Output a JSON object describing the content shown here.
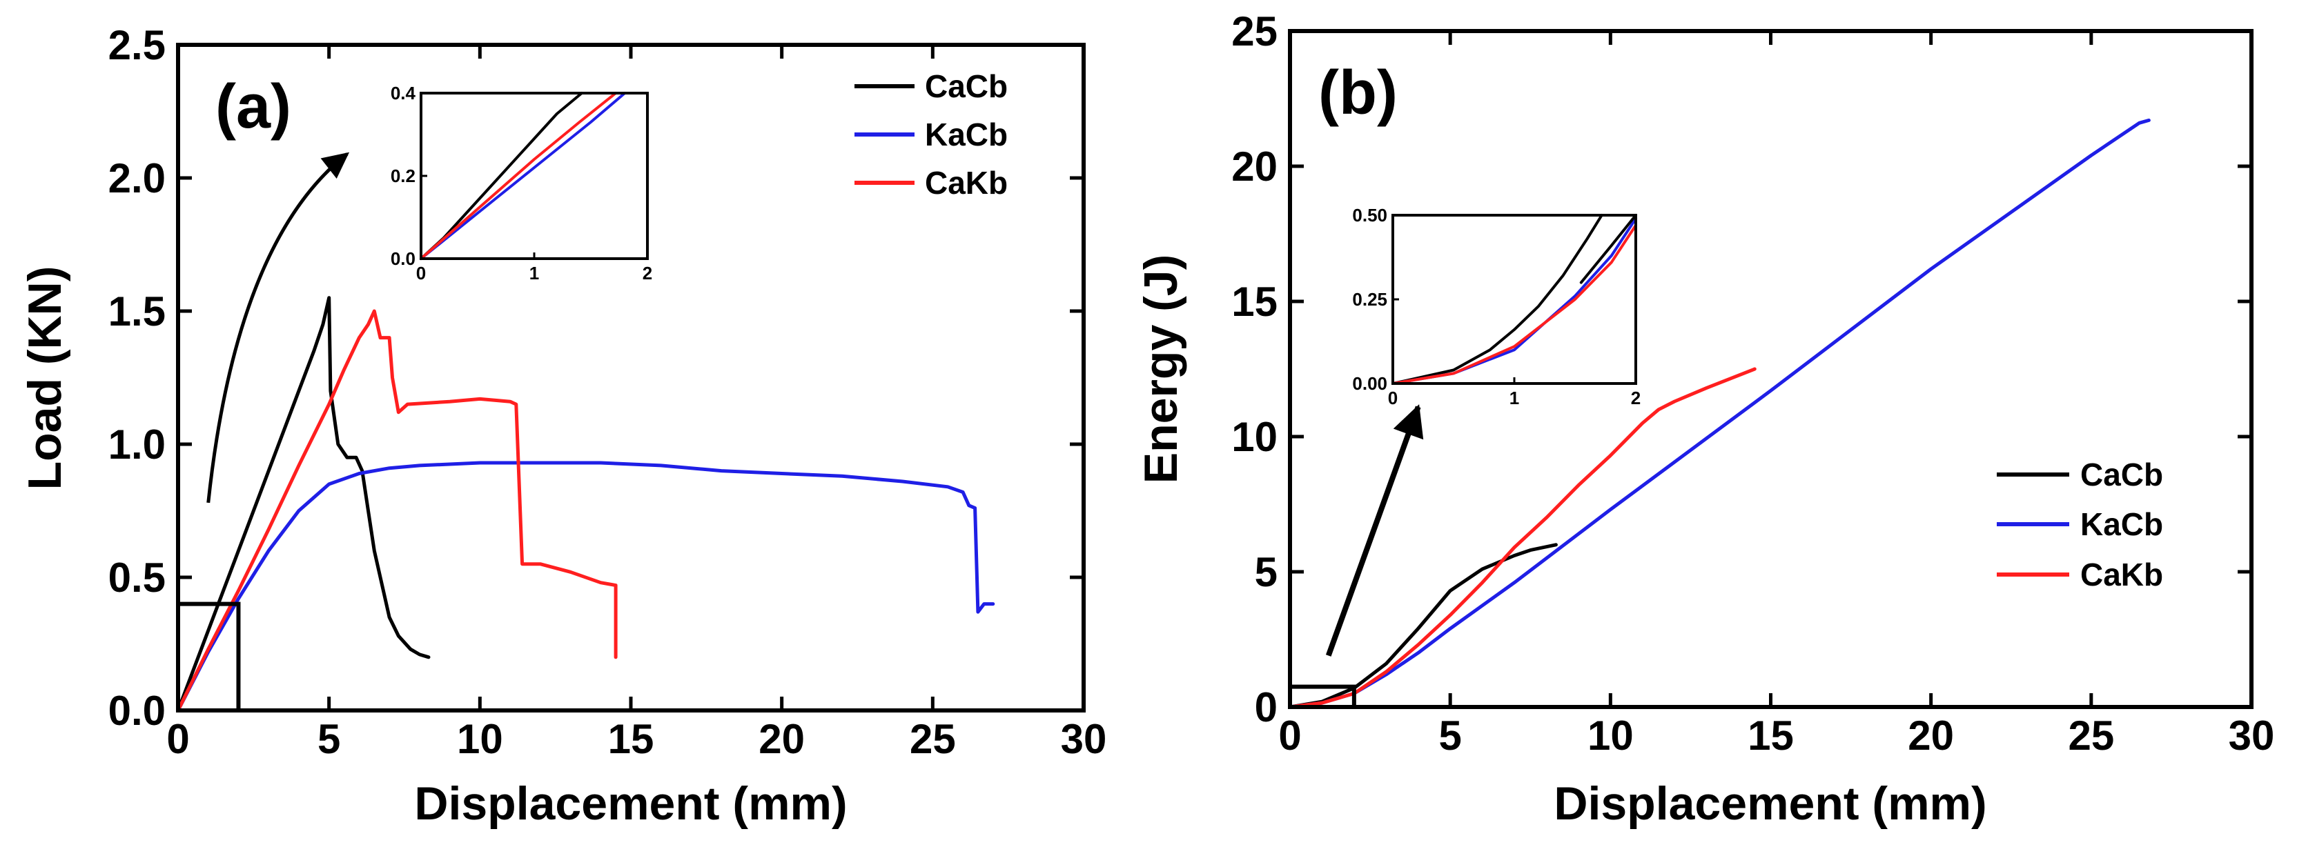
{
  "chart_data": [
    {
      "type": "line",
      "panel_label": "(a)",
      "xlabel": "Displacement (mm)",
      "ylabel": "Load (KN)",
      "xlim": [
        0,
        30
      ],
      "ylim": [
        0,
        2.5
      ],
      "xticks": [
        0,
        5,
        10,
        15,
        20,
        25,
        30
      ],
      "yticks": [
        0.0,
        0.5,
        1.0,
        1.5,
        2.0,
        2.5
      ],
      "xtick_labels": [
        "0",
        "5",
        "10",
        "15",
        "20",
        "25",
        "30"
      ],
      "ytick_labels": [
        "0.0",
        "0.5",
        "1.0",
        "1.5",
        "2.0",
        "2.5"
      ],
      "legend": [
        "CaCb",
        "KaCb",
        "CaKb"
      ],
      "legend_position": "top-right",
      "series": [
        {
          "name": "CaCb",
          "color": "#000000",
          "points": [
            [
              0,
              0
            ],
            [
              1,
              0.3
            ],
            [
              2,
              0.6
            ],
            [
              3,
              0.9
            ],
            [
              4,
              1.2
            ],
            [
              4.5,
              1.35
            ],
            [
              4.8,
              1.45
            ],
            [
              5.0,
              1.55
            ],
            [
              5.05,
              1.2
            ],
            [
              5.3,
              1.0
            ],
            [
              5.6,
              0.95
            ],
            [
              5.9,
              0.95
            ],
            [
              6.1,
              0.9
            ],
            [
              6.3,
              0.75
            ],
            [
              6.5,
              0.6
            ],
            [
              6.8,
              0.45
            ],
            [
              7.0,
              0.35
            ],
            [
              7.3,
              0.28
            ],
            [
              7.7,
              0.23
            ],
            [
              8.0,
              0.21
            ],
            [
              8.3,
              0.2
            ]
          ]
        },
        {
          "name": "KaCb",
          "color": "#1f1fe6",
          "points": [
            [
              0,
              0
            ],
            [
              1,
              0.22
            ],
            [
              2,
              0.42
            ],
            [
              3,
              0.6
            ],
            [
              4,
              0.75
            ],
            [
              5,
              0.85
            ],
            [
              6,
              0.89
            ],
            [
              7,
              0.91
            ],
            [
              8,
              0.92
            ],
            [
              10,
              0.93
            ],
            [
              12,
              0.93
            ],
            [
              14,
              0.93
            ],
            [
              16,
              0.92
            ],
            [
              18,
              0.9
            ],
            [
              20,
              0.89
            ],
            [
              22,
              0.88
            ],
            [
              24,
              0.86
            ],
            [
              25.5,
              0.84
            ],
            [
              26.0,
              0.82
            ],
            [
              26.2,
              0.77
            ],
            [
              26.4,
              0.76
            ],
            [
              26.5,
              0.37
            ],
            [
              26.7,
              0.4
            ],
            [
              27.0,
              0.4
            ]
          ]
        },
        {
          "name": "CaKb",
          "color": "#ff1f1f",
          "points": [
            [
              0,
              0
            ],
            [
              1,
              0.23
            ],
            [
              2,
              0.45
            ],
            [
              3,
              0.68
            ],
            [
              4,
              0.92
            ],
            [
              5,
              1.15
            ],
            [
              5.5,
              1.28
            ],
            [
              6.0,
              1.4
            ],
            [
              6.3,
              1.45
            ],
            [
              6.5,
              1.5
            ],
            [
              6.7,
              1.4
            ],
            [
              7.0,
              1.4
            ],
            [
              7.1,
              1.25
            ],
            [
              7.3,
              1.12
            ],
            [
              7.6,
              1.15
            ],
            [
              9,
              1.16
            ],
            [
              10,
              1.17
            ],
            [
              11,
              1.16
            ],
            [
              11.2,
              1.15
            ],
            [
              11.4,
              0.55
            ],
            [
              12,
              0.55
            ],
            [
              13,
              0.52
            ],
            [
              14,
              0.48
            ],
            [
              14.5,
              0.47
            ],
            [
              14.5,
              0.2
            ]
          ]
        }
      ],
      "annotations": [
        {
          "type": "zoom-box",
          "x": [
            0,
            2
          ],
          "y": [
            0,
            0.4
          ]
        },
        {
          "type": "arrow",
          "from": [
            1.0,
            0.78
          ],
          "to": [
            5.6,
            2.09
          ]
        }
      ],
      "inset": {
        "xlim": [
          0,
          2
        ],
        "ylim": [
          0,
          0.4
        ],
        "xticks": [
          0,
          1,
          2
        ],
        "yticks": [
          0.0,
          0.2,
          0.4
        ],
        "xtick_labels": [
          "0",
          "1",
          "2"
        ],
        "ytick_labels": [
          "0.0",
          "0.2",
          "0.4"
        ],
        "series": [
          {
            "name": "CaCb",
            "color": "#000000",
            "points": [
              [
                0,
                0
              ],
              [
                0.2,
                0.05
              ],
              [
                0.6,
                0.17
              ],
              [
                1.0,
                0.29
              ],
              [
                1.2,
                0.35
              ],
              [
                1.42,
                0.4
              ]
            ]
          },
          {
            "name": "KaCb",
            "color": "#1f1fe6",
            "points": [
              [
                0,
                0
              ],
              [
                0.5,
                0.11
              ],
              [
                1.0,
                0.22
              ],
              [
                1.5,
                0.33
              ],
              [
                1.8,
                0.4
              ]
            ]
          },
          {
            "name": "CaKb",
            "color": "#ff1f1f",
            "points": [
              [
                0,
                0
              ],
              [
                0.5,
                0.12
              ],
              [
                1.0,
                0.24
              ],
              [
                1.4,
                0.33
              ],
              [
                1.72,
                0.4
              ]
            ]
          }
        ]
      }
    },
    {
      "type": "line",
      "panel_label": "(b)",
      "xlabel": "Displacement (mm)",
      "ylabel": "Energy (J)",
      "xlim": [
        0,
        30
      ],
      "ylim": [
        0,
        25
      ],
      "xticks": [
        0,
        5,
        10,
        15,
        20,
        25,
        30
      ],
      "yticks": [
        0,
        5,
        10,
        15,
        20,
        25
      ],
      "xtick_labels": [
        "0",
        "5",
        "10",
        "15",
        "20",
        "25",
        "30"
      ],
      "ytick_labels": [
        "0",
        "5",
        "10",
        "15",
        "20",
        "25"
      ],
      "legend": [
        "CaCb",
        "KaCb",
        "CaKb"
      ],
      "legend_position": "center-right",
      "series": [
        {
          "name": "CaCb",
          "color": "#000000",
          "points": [
            [
              0,
              0
            ],
            [
              1,
              0.2
            ],
            [
              2,
              0.7
            ],
            [
              3,
              1.6
            ],
            [
              4,
              2.9
            ],
            [
              5,
              4.3
            ],
            [
              6,
              5.1
            ],
            [
              7,
              5.6
            ],
            [
              7.5,
              5.8
            ],
            [
              8.3,
              6.0
            ]
          ]
        },
        {
          "name": "KaCb",
          "color": "#1f1fe6",
          "points": [
            [
              0,
              0
            ],
            [
              1,
              0.15
            ],
            [
              2,
              0.5
            ],
            [
              3,
              1.2
            ],
            [
              4,
              2.0
            ],
            [
              5,
              2.9
            ],
            [
              7,
              4.6
            ],
            [
              10,
              7.3
            ],
            [
              15,
              11.7
            ],
            [
              20,
              16.2
            ],
            [
              25,
              20.4
            ],
            [
              26.5,
              21.6
            ],
            [
              26.8,
              21.7
            ]
          ]
        },
        {
          "name": "CaKb",
          "color": "#ff1f1f",
          "points": [
            [
              0,
              0
            ],
            [
              1,
              0.15
            ],
            [
              2,
              0.5
            ],
            [
              3,
              1.3
            ],
            [
              4,
              2.3
            ],
            [
              5,
              3.4
            ],
            [
              6,
              4.6
            ],
            [
              7,
              5.9
            ],
            [
              8,
              7.0
            ],
            [
              9,
              8.2
            ],
            [
              10,
              9.3
            ],
            [
              11,
              10.5
            ],
            [
              11.5,
              11.0
            ],
            [
              12,
              11.3
            ],
            [
              13,
              11.8
            ],
            [
              14.5,
              12.5
            ]
          ]
        }
      ],
      "annotations": [
        {
          "type": "zoom-box",
          "x": [
            0,
            2
          ],
          "y": [
            0,
            0.75
          ]
        },
        {
          "type": "arrow",
          "from": [
            1.2,
            1.9
          ],
          "to": [
            4.0,
            11.1
          ]
        }
      ],
      "inset": {
        "xlim": [
          0,
          2
        ],
        "ylim": [
          0,
          0.5
        ],
        "xticks": [
          0,
          1,
          2
        ],
        "yticks": [
          0.0,
          0.25,
          0.5
        ],
        "xtick_labels": [
          "0",
          "1",
          "2"
        ],
        "ytick_labels": [
          "0.00",
          "0.25",
          "0.50"
        ],
        "series": [
          {
            "name": "CaCb",
            "color": "#000000",
            "points": [
              [
                0,
                0
              ],
              [
                0.5,
                0.04
              ],
              [
                0.8,
                0.1
              ],
              [
                1.0,
                0.16
              ],
              [
                1.2,
                0.23
              ],
              [
                1.4,
                0.32
              ],
              [
                1.6,
                0.43
              ],
              [
                1.72,
                0.5
              ]
            ]
          },
          {
            "name": "KaCb",
            "color": "#1f1fe6",
            "points": [
              [
                0,
                0
              ],
              [
                0.5,
                0.03
              ],
              [
                1.0,
                0.1
              ],
              [
                1.5,
                0.26
              ],
              [
                1.8,
                0.38
              ],
              [
                2.0,
                0.49
              ]
            ]
          },
          {
            "name": "CaKb",
            "color": "#ff1f1f",
            "points": [
              [
                0,
                0
              ],
              [
                0.5,
                0.03
              ],
              [
                1.0,
                0.11
              ],
              [
                1.5,
                0.25
              ],
              [
                1.8,
                0.36
              ],
              [
                2.0,
                0.47
              ]
            ]
          },
          {
            "name": "CaCb-2",
            "color": "#000000",
            "points": [
              [
                1.55,
                0.3
              ],
              [
                1.8,
                0.41
              ],
              [
                2.0,
                0.5
              ]
            ]
          }
        ]
      }
    }
  ]
}
